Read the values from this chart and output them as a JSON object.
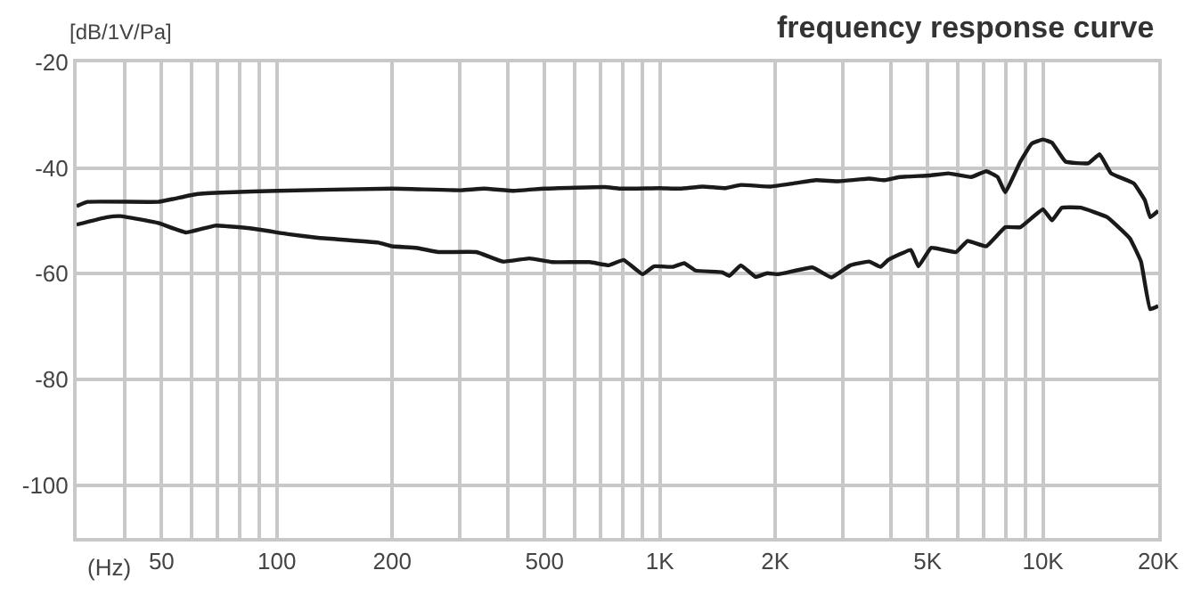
{
  "chart_data": {
    "type": "line",
    "title": "frequency response curve",
    "ylabel": "[dB/1V/Pa]",
    "xlabel": "(Hz)",
    "log": "x",
    "grid": true,
    "marker": "none",
    "line_style": "solid",
    "xlim": [
      30,
      20000
    ],
    "ylim": [
      -110,
      -20
    ],
    "xticks": [
      {
        "value": 40,
        "label": null
      },
      50,
      {
        "value": 60,
        "label": null
      },
      {
        "value": 70,
        "label": null
      },
      {
        "value": 80,
        "label": null
      },
      {
        "value": 90,
        "label": null
      },
      100,
      200,
      {
        "value": 300,
        "label": null
      },
      {
        "value": 400,
        "label": null
      },
      500,
      {
        "value": 600,
        "label": null
      },
      {
        "value": 700,
        "label": null
      },
      {
        "value": 800,
        "label": null
      },
      {
        "value": 900,
        "label": null
      },
      {
        "value": 1000,
        "label": "1K"
      },
      {
        "value": 2000,
        "label": "2K"
      },
      {
        "value": 3000,
        "label": null
      },
      {
        "value": 4000,
        "label": null
      },
      {
        "value": 5000,
        "label": "5K"
      },
      {
        "value": 6000,
        "label": null
      },
      {
        "value": 7000,
        "label": null
      },
      {
        "value": 8000,
        "label": null
      },
      {
        "value": 9000,
        "label": null
      },
      {
        "value": 10000,
        "label": "10K"
      },
      {
        "value": 20000,
        "label": "20K"
      }
    ],
    "yticks": [
      -20,
      -40,
      -60,
      -80,
      -100
    ],
    "series": [
      {
        "color": "#1a1a1a",
        "x": [
          30,
          32,
          49,
          54,
          62,
          74,
          100,
          200,
          303,
          347,
          416,
          499,
          718,
          786,
          1000,
          1130,
          1294,
          1485,
          1626,
          1950,
          2234,
          2560,
          2933,
          3516,
          3851,
          4218,
          5057,
          5666,
          6498,
          7111,
          7617,
          7969,
          8728,
          9342,
          10000,
          10560,
          11460,
          13130,
          14060,
          15060,
          17260,
          18460,
          19050,
          20000
        ],
        "values": [
          -47.2,
          -46.4,
          -46.4,
          -45.8,
          -44.9,
          -44.6,
          -44.3,
          -43.9,
          -44.2,
          -43.9,
          -44.3,
          -43.9,
          -43.6,
          -43.9,
          -43.8,
          -43.9,
          -43.5,
          -43.8,
          -43.2,
          -43.5,
          -42.9,
          -42.3,
          -42.5,
          -42.0,
          -42.3,
          -41.7,
          -41.4,
          -41.0,
          -41.7,
          -40.6,
          -41.7,
          -44.6,
          -38.8,
          -35.4,
          -34.6,
          -35.2,
          -38.8,
          -39.1,
          -37.4,
          -41.0,
          -42.9,
          -46.1,
          -49.3,
          -48.1
        ]
      },
      {
        "color": "#1a1a1a",
        "x": [
          30,
          36,
          39,
          49,
          58,
          69,
          85,
          107,
          128,
          184,
          200,
          231,
          264,
          332,
          389,
          456,
          523,
          656,
          735,
          804,
          901,
          964,
          1081,
          1157,
          1239,
          1452,
          1519,
          1626,
          1779,
          1905,
          2041,
          2501,
          2803,
          3142,
          3516,
          3766,
          3944,
          4519,
          4731,
          5107,
          5932,
          6353,
          7111,
          7969,
          8728,
          10000,
          10560,
          11200,
          12560,
          14720,
          16860,
          18030,
          19050,
          20000
        ],
        "values": [
          -50.7,
          -49.3,
          -49.1,
          -50.4,
          -52.2,
          -50.9,
          -51.4,
          -52.5,
          -53.2,
          -54.1,
          -54.8,
          -55.1,
          -55.9,
          -55.9,
          -57.7,
          -57.1,
          -57.8,
          -57.8,
          -58.4,
          -57.4,
          -60.1,
          -58.6,
          -58.7,
          -58.0,
          -59.4,
          -59.7,
          -60.4,
          -58.4,
          -60.6,
          -59.9,
          -60.1,
          -58.8,
          -60.7,
          -58.4,
          -57.7,
          -58.7,
          -57.4,
          -55.5,
          -58.6,
          -55.1,
          -55.9,
          -53.8,
          -54.8,
          -51.2,
          -51.2,
          -47.8,
          -49.9,
          -47.5,
          -47.5,
          -49.3,
          -53.3,
          -57.7,
          -66.7,
          -66.1
        ]
      }
    ]
  }
}
